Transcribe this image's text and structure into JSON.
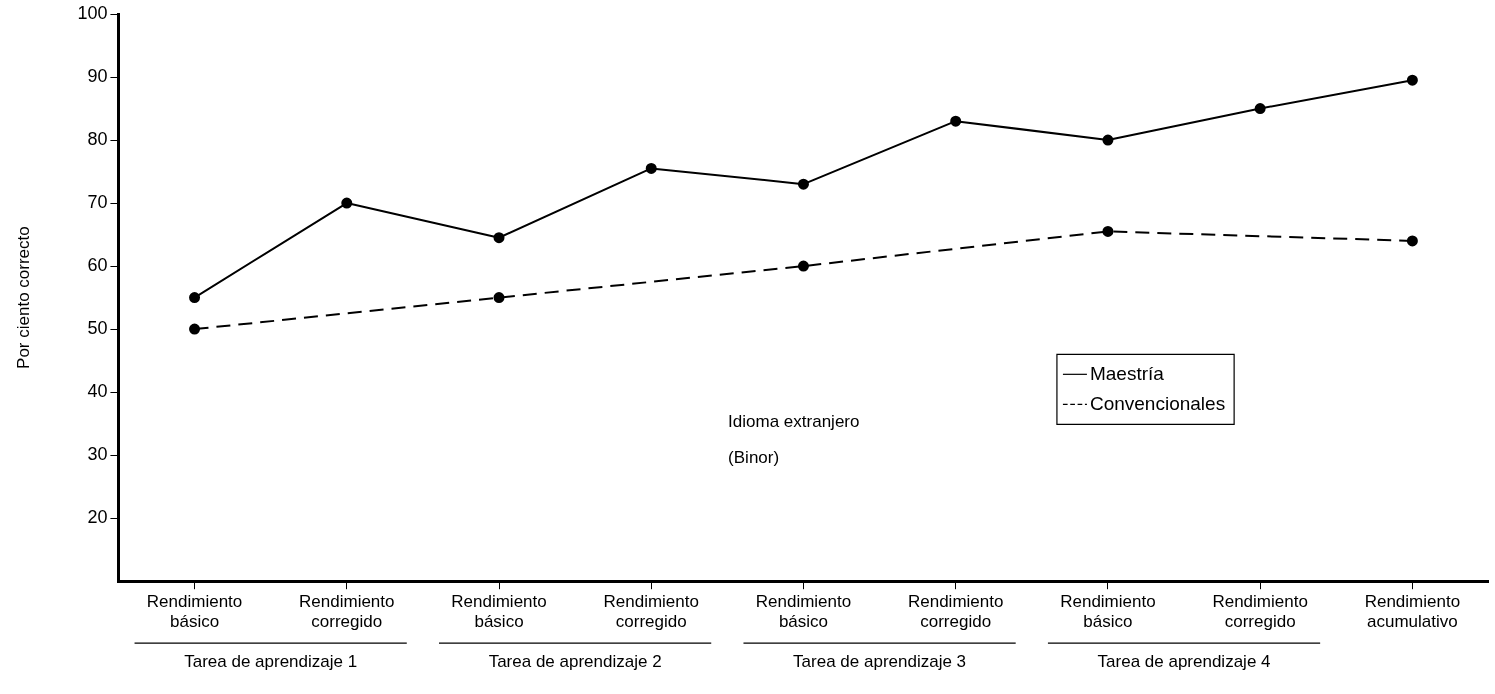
{
  "chart_data": {
    "type": "line",
    "ylabel": "Por ciento correcto",
    "categories": [
      "Rendimiento básico",
      "Rendimiento corregido",
      "Rendimiento básico",
      "Rendimiento corregido",
      "Rendimiento básico",
      "Rendimiento corregido",
      "Rendimiento básico",
      "Rendimiento corregido",
      "Rendimiento acumulativo"
    ],
    "series": [
      {
        "name": "Maestría",
        "color": "#000000",
        "line_style": "solid",
        "values": [
          55,
          70,
          64.5,
          75.5,
          73,
          83,
          80,
          85,
          89.5
        ]
      },
      {
        "name": "Convencionales",
        "color": "#000000",
        "line_style": "dashed",
        "values": [
          50,
          null,
          55,
          null,
          60,
          null,
          65.5,
          null,
          64
        ]
      }
    ],
    "ylim": [
      10,
      100
    ],
    "yticks": [
      20,
      30,
      40,
      50,
      60,
      70,
      80,
      90,
      100
    ],
    "grid": false,
    "legend": "center right",
    "marker": "circle",
    "annotations": [
      "Tarea de aprendizaje 1",
      "Tarea de aprendizaje 2",
      "Tarea de aprendizaje 3",
      "Tarea de aprendizaje 4",
      "Idioma extranjero\n(Binor)"
    ]
  }
}
